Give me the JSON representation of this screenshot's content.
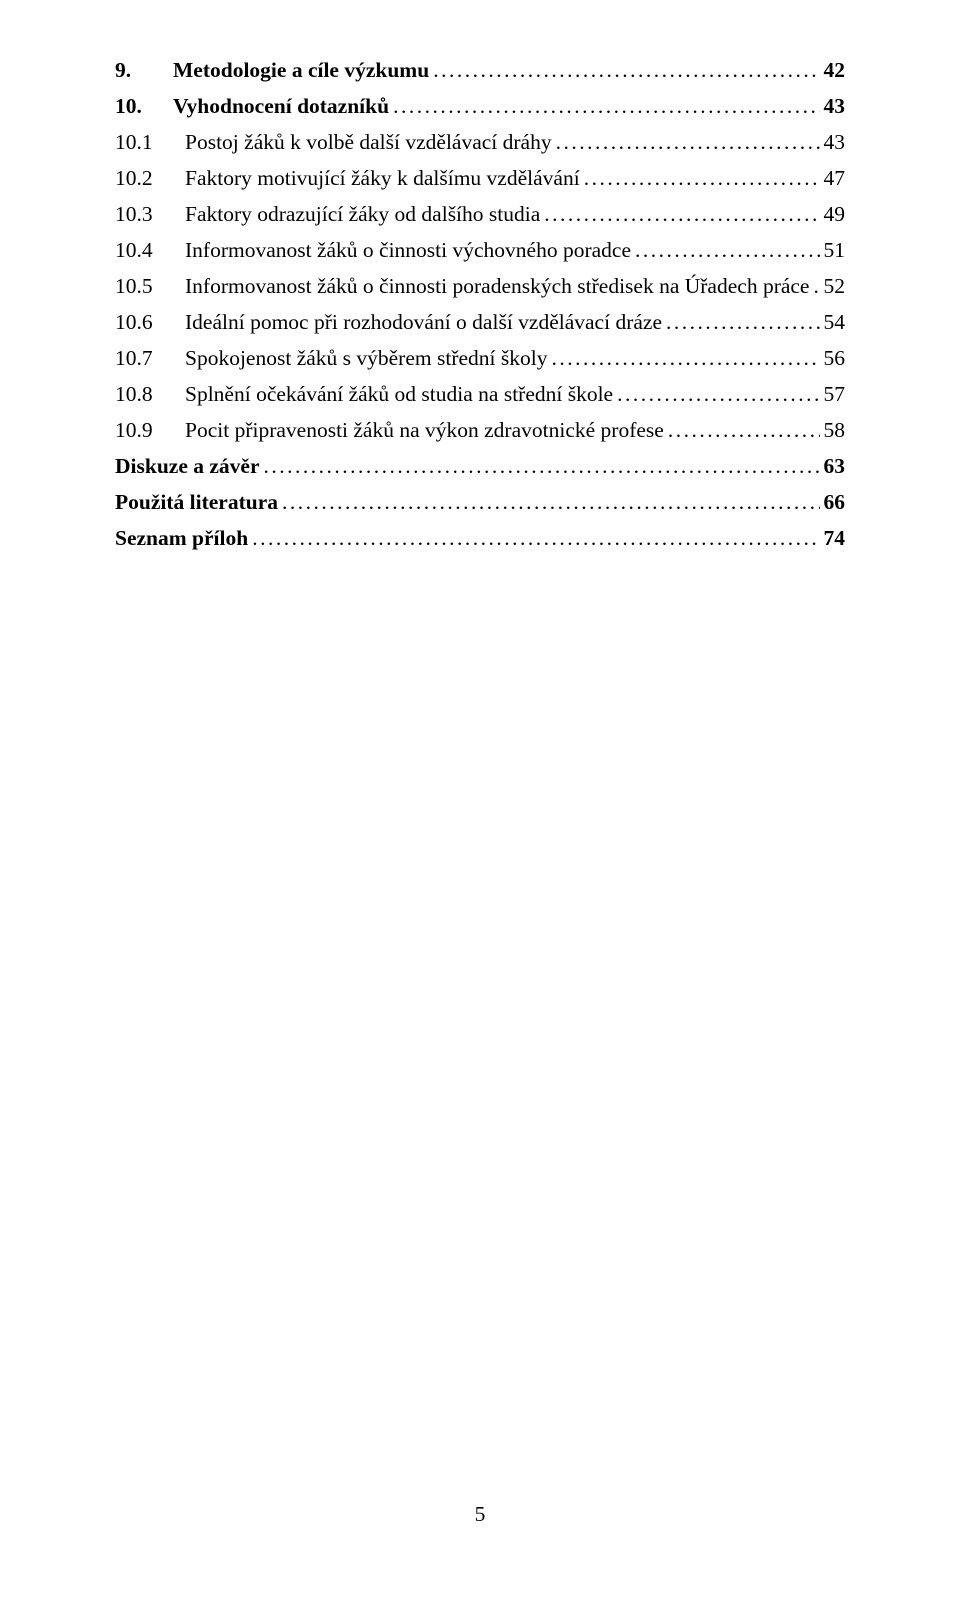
{
  "toc": {
    "entries": [
      {
        "num": "9.",
        "label": "Metodologie a cíle výzkumu",
        "page": "42",
        "bold": true,
        "sub": false,
        "noNum": false
      },
      {
        "num": "10.",
        "label": "Vyhodnocení dotazníků",
        "page": "43",
        "bold": true,
        "sub": false,
        "noNum": false
      },
      {
        "num": "10.1",
        "label": "Postoj žáků k volbě další vzdělávací dráhy",
        "page": "43",
        "bold": false,
        "sub": true,
        "noNum": false
      },
      {
        "num": "10.2",
        "label": "Faktory motivující žáky k dalšímu vzdělávání",
        "page": "47",
        "bold": false,
        "sub": true,
        "noNum": false
      },
      {
        "num": "10.3",
        "label": "Faktory odrazující žáky od dalšího studia",
        "page": "49",
        "bold": false,
        "sub": true,
        "noNum": false
      },
      {
        "num": "10.4",
        "label": "Informovanost žáků o činnosti výchovného poradce",
        "page": "51",
        "bold": false,
        "sub": true,
        "noNum": false
      },
      {
        "num": "10.5",
        "label": "Informovanost žáků o činnosti poradenských středisek na Úřadech práce",
        "page": "52",
        "bold": false,
        "sub": true,
        "noNum": false
      },
      {
        "num": "10.6",
        "label": "Ideální pomoc při rozhodování o další vzdělávací dráze",
        "page": "54",
        "bold": false,
        "sub": true,
        "noNum": false
      },
      {
        "num": "10.7",
        "label": "Spokojenost žáků s výběrem střední školy",
        "page": "56",
        "bold": false,
        "sub": true,
        "noNum": false
      },
      {
        "num": "10.8",
        "label": "Splnění očekávání žáků od studia na střední škole",
        "page": "57",
        "bold": false,
        "sub": true,
        "noNum": false
      },
      {
        "num": "10.9",
        "label": "Pocit připravenosti žáků na výkon zdravotnické profese",
        "page": "58",
        "bold": false,
        "sub": true,
        "noNum": false
      },
      {
        "num": "",
        "label": "Diskuze a závěr",
        "page": "63",
        "bold": true,
        "sub": false,
        "noNum": true
      },
      {
        "num": "",
        "label": "Použitá literatura",
        "page": "66",
        "bold": true,
        "sub": false,
        "noNum": true
      },
      {
        "num": "",
        "label": "Seznam příloh",
        "page": "74",
        "bold": true,
        "sub": false,
        "noNum": true
      }
    ]
  },
  "footer": {
    "page_number": "5"
  }
}
